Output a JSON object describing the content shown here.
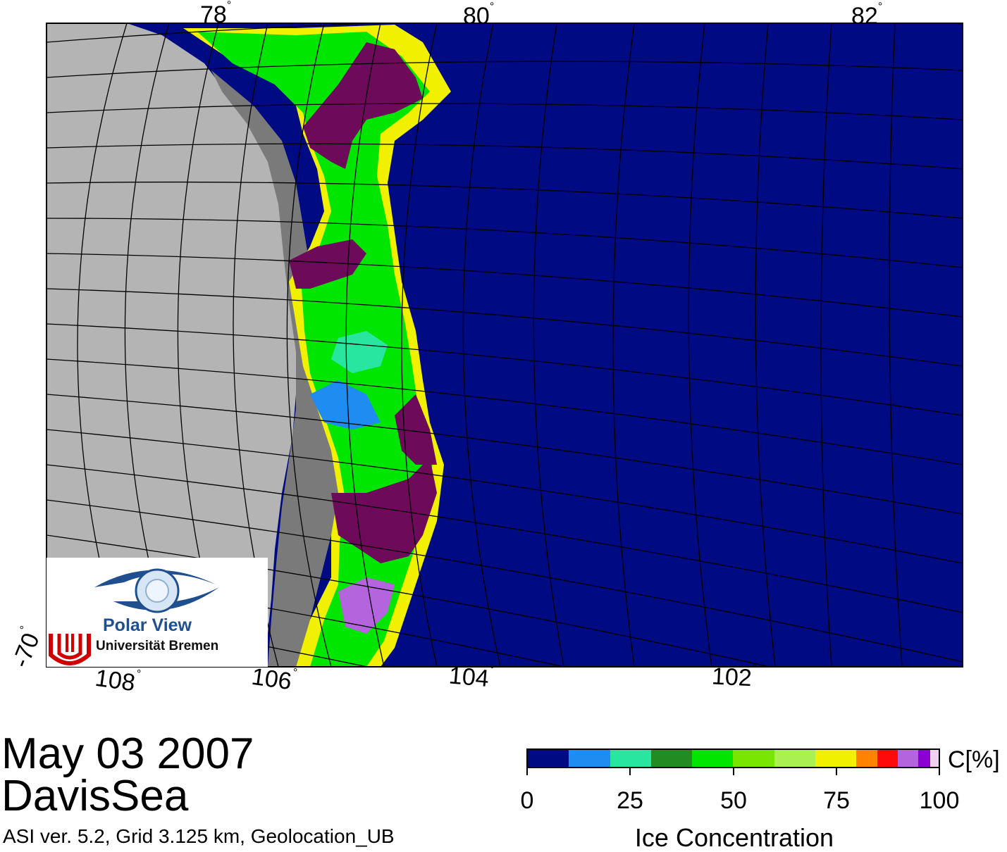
{
  "map": {
    "date": "May 03 2007",
    "region": "DavisSea",
    "info": "ASI ver. 5.2,  Grid 3.125 km, Geolocation_UB",
    "lat_labels": [
      "78",
      "80",
      "82",
      "-70"
    ],
    "lon_labels": [
      "108",
      "106",
      "104",
      "102"
    ],
    "colors": {
      "ocean": "#000a82",
      "land": "#b4b4b4",
      "ice_shelf": "#7a7a7a",
      "grid": "#000000"
    }
  },
  "colorbar": {
    "title": "Ice Concentration",
    "unit": "C[%]",
    "ticks": [
      "0",
      "25",
      "50",
      "75",
      "100"
    ],
    "colors": [
      "#000a82",
      "#1e8cf0",
      "#28e6a0",
      "#228b22",
      "#00e600",
      "#78e600",
      "#aaf050",
      "#f0f000",
      "#ff8200",
      "#ff0a0a",
      "#b464dc",
      "#8c00d2",
      "#f0d2f0"
    ]
  },
  "logo": {
    "title": "Polar View",
    "institution": "Universität Bremen"
  }
}
